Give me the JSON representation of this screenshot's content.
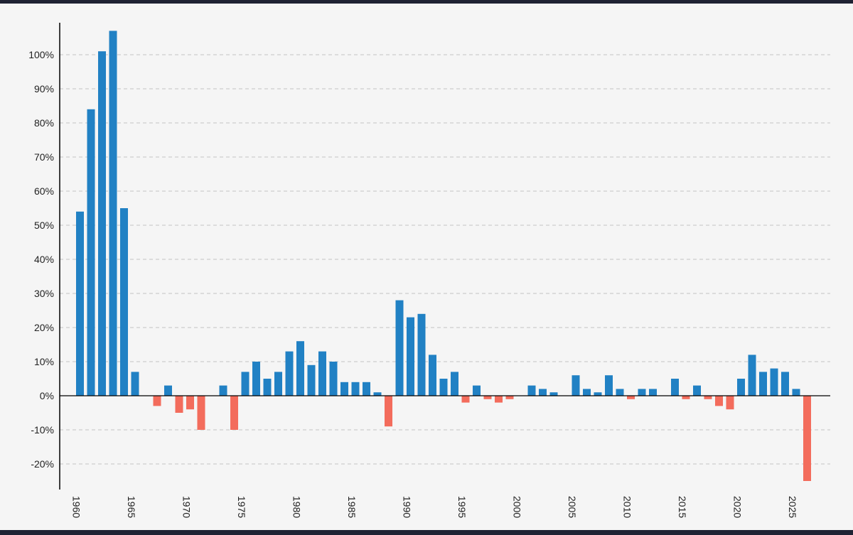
{
  "chart_data": {
    "type": "bar",
    "title": "",
    "xlabel": "",
    "ylabel": "",
    "ylim": [
      -27,
      110
    ],
    "grid": true,
    "colors": {
      "positive": "#2181c4",
      "negative": "#f36c5c",
      "axis": "#000000",
      "grid": "#c4c4c4"
    },
    "y_ticks": [
      {
        "value": -20,
        "label": "-20%"
      },
      {
        "value": -10,
        "label": "-10%"
      },
      {
        "value": 0,
        "label": "0%"
      },
      {
        "value": 10,
        "label": "10%"
      },
      {
        "value": 20,
        "label": "20%"
      },
      {
        "value": 30,
        "label": "30%"
      },
      {
        "value": 40,
        "label": "40%"
      },
      {
        "value": 50,
        "label": "50%"
      },
      {
        "value": 60,
        "label": "60%"
      },
      {
        "value": 70,
        "label": "70%"
      },
      {
        "value": 80,
        "label": "80%"
      },
      {
        "value": 90,
        "label": "90%"
      },
      {
        "value": 100,
        "label": "100%"
      }
    ],
    "x_ticks": [
      {
        "value": 1960,
        "label": "1960"
      },
      {
        "value": 1965,
        "label": "1965"
      },
      {
        "value": 1970,
        "label": "1970"
      },
      {
        "value": 1975,
        "label": "1975"
      },
      {
        "value": 1980,
        "label": "1980"
      },
      {
        "value": 1985,
        "label": "1985"
      },
      {
        "value": 1990,
        "label": "1990"
      },
      {
        "value": 1995,
        "label": "1995"
      },
      {
        "value": 2000,
        "label": "2000"
      },
      {
        "value": 2005,
        "label": "2005"
      },
      {
        "value": 2010,
        "label": "2010"
      },
      {
        "value": 2015,
        "label": "2015"
      },
      {
        "value": 2020,
        "label": "2020"
      },
      {
        "value": 2025,
        "label": "2025"
      }
    ],
    "x": [
      1960,
      1961,
      1962,
      1963,
      1964,
      1965,
      1966,
      1967,
      1968,
      1969,
      1970,
      1971,
      1972,
      1973,
      1974,
      1975,
      1976,
      1977,
      1978,
      1979,
      1980,
      1981,
      1982,
      1983,
      1984,
      1985,
      1986,
      1987,
      1988,
      1989,
      1990,
      1991,
      1992,
      1993,
      1994,
      1995,
      1996,
      1997,
      1998,
      1999,
      2000,
      2001,
      2002,
      2003,
      2004,
      2005,
      2006,
      2007,
      2008,
      2009,
      2010,
      2011,
      2012,
      2013,
      2014,
      2015,
      2016,
      2017,
      2018,
      2019,
      2020,
      2021,
      2022,
      2023,
      2024,
      2025,
      2026
    ],
    "values": [
      54,
      84,
      101,
      107,
      55,
      7,
      0,
      -3,
      3,
      -5,
      -4,
      -10,
      0,
      3,
      -10,
      7,
      10,
      5,
      7,
      13,
      16,
      9,
      13,
      10,
      4,
      4,
      4,
      1,
      -9,
      28,
      23,
      24,
      12,
      5,
      7,
      -2,
      3,
      -1,
      -2,
      -1,
      0,
      3,
      2,
      1,
      0,
      6,
      2,
      1,
      6,
      2,
      -1,
      2,
      2,
      0,
      5,
      -1,
      3,
      -1,
      -3,
      -4,
      5,
      12,
      7,
      8,
      7,
      2,
      -25
    ]
  }
}
